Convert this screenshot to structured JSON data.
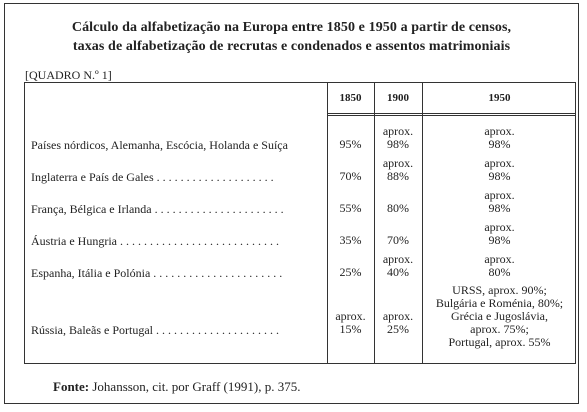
{
  "title_line1": "Cálculo da alfabetização na Europa entre 1850 e 1950 a partir de censos,",
  "title_line2": "taxas de alfabetização de recrutas e condenados e assentos matrimoniais",
  "table_label": "[QUADRO N.º 1]",
  "headers": [
    "1850",
    "1900",
    "1950"
  ],
  "rows": [
    {
      "country": "Países nórdicos, Alemanha, Escócia, Holanda e Suíça",
      "v1850": "95%",
      "v1900": [
        "aprox.",
        "98%"
      ],
      "v1950": [
        "aprox.",
        "98%"
      ]
    },
    {
      "country": "Inglaterra e País de Gales . . . . . . . . . . . . . . . . . . . .",
      "v1850": "70%",
      "v1900": [
        "aprox.",
        "88%"
      ],
      "v1950": [
        "aprox.",
        "98%"
      ]
    },
    {
      "country": "França, Bélgica e Irlanda . . . . . . . . . . . . . . . . . . . . . .",
      "v1850": "55%",
      "v1900": [
        "80%"
      ],
      "v1950": [
        "aprox.",
        "98%"
      ]
    },
    {
      "country": "Áustria e Hungria . . . . . . . . . . . . . . . . . . . . . . . . . . .",
      "v1850": "35%",
      "v1900": [
        "70%"
      ],
      "v1950": [
        "aprox.",
        "98%"
      ]
    },
    {
      "country": "Espanha, Itália e Polónia . . . . . . . . . . . . . . . . . . . . . .",
      "v1850": "25%",
      "v1900": [
        "aprox.",
        "40%"
      ],
      "v1950": [
        "aprox.",
        "80%"
      ]
    },
    {
      "country": "Rússia, Baleãs e Portugal . . . . . . . . . . . . . . . . . . . . .",
      "v1850": [
        "aprox.",
        "15%"
      ],
      "v1900": [
        "aprox.",
        "25%"
      ],
      "v1950": [
        "URSS, aprox. 90%;",
        "Bulgária e Roménia, 80%;",
        "Grécia e Jugoslávia,",
        "aprox. 75%;",
        "Portugal, aprox. 55%"
      ]
    }
  ],
  "footer_label": "Fonte:",
  "footer_text": " Johansson, cit. por Graff (1991), p. 375."
}
